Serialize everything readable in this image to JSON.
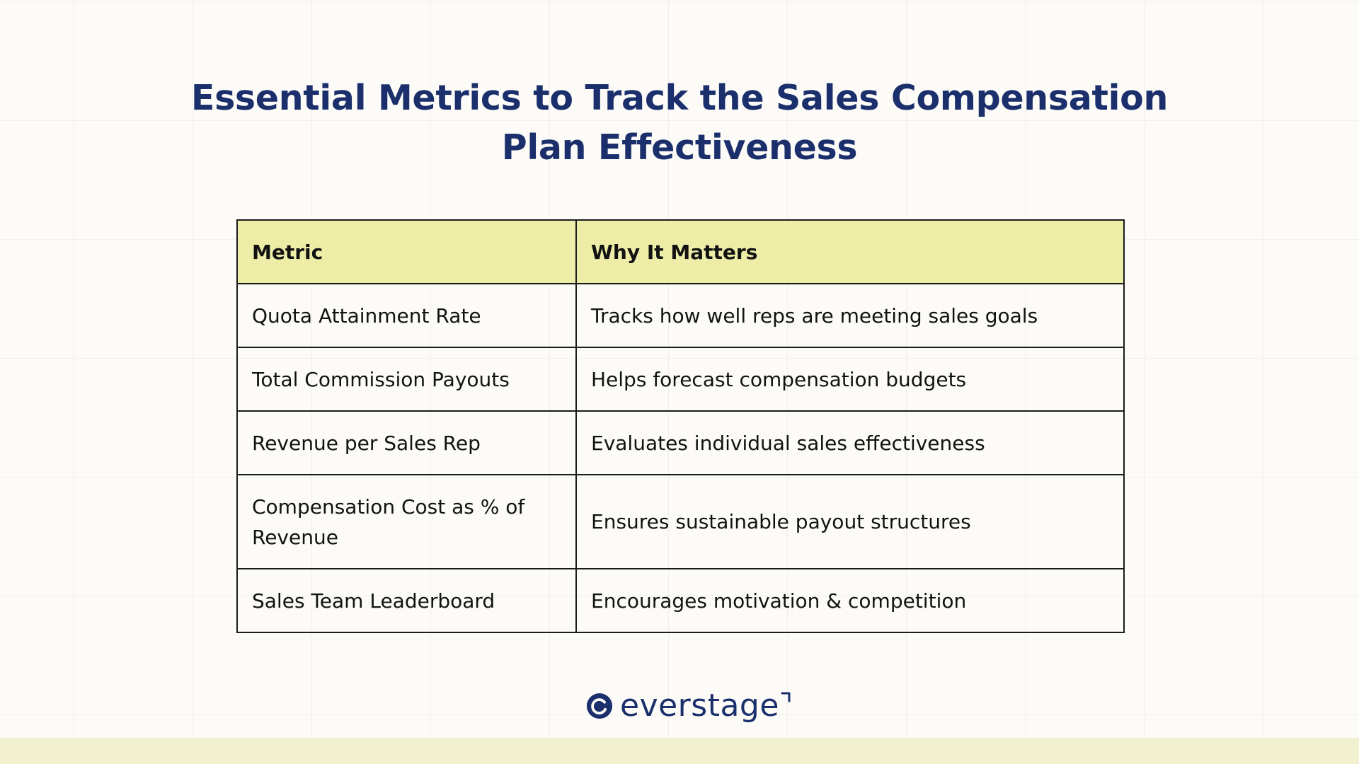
{
  "title": {
    "line1": "Essential Metrics to Track the Sales Compensation",
    "line2": "Plan Effectiveness"
  },
  "table": {
    "headers": [
      "Metric",
      "Why It Matters"
    ],
    "rows": [
      {
        "metric": "Quota Attainment Rate",
        "why": "Tracks how well reps are meeting sales goals"
      },
      {
        "metric": "Total Commission Payouts",
        "why": "Helps forecast compensation budgets"
      },
      {
        "metric": "Revenue per Sales Rep",
        "why": "Evaluates individual sales effectiveness"
      },
      {
        "metric": "Compensation Cost as % of Revenue",
        "why": "Ensures sustainable payout structures"
      },
      {
        "metric": "Sales Team Leaderboard",
        "why": "Encourages motivation & competition"
      }
    ]
  },
  "brand": {
    "name": "everstage",
    "icon": "everstage-logo-icon",
    "color": "#1a2f6b"
  },
  "colors": {
    "header_fill": "#eeeda8",
    "footer_band": "#f1f1cf",
    "background": "#fcfbf7"
  }
}
